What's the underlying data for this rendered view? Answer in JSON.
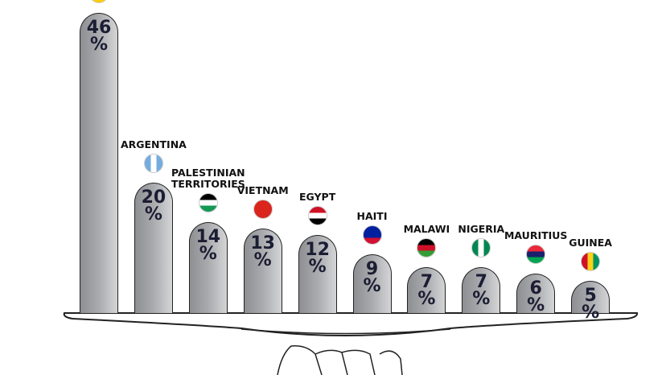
{
  "chart_data": {
    "type": "bar",
    "categories": [
      null,
      "ARGENTINA",
      "PALESTINIAN TERRITORIES",
      "VIETNAM",
      "EGYPT",
      "HAITI",
      "MALAWI",
      "NIGERIA",
      "MAURITIUS",
      "GUINEA"
    ],
    "values": [
      46,
      20,
      14,
      13,
      12,
      9,
      7,
      7,
      6,
      5
    ],
    "value_labels": [
      "46 %",
      "20 %",
      "14 %",
      "13 %",
      "12 %",
      "9 %",
      "7 %",
      "7 %",
      "6 %",
      "5 %"
    ],
    "color": "#a9abae"
  }
}
